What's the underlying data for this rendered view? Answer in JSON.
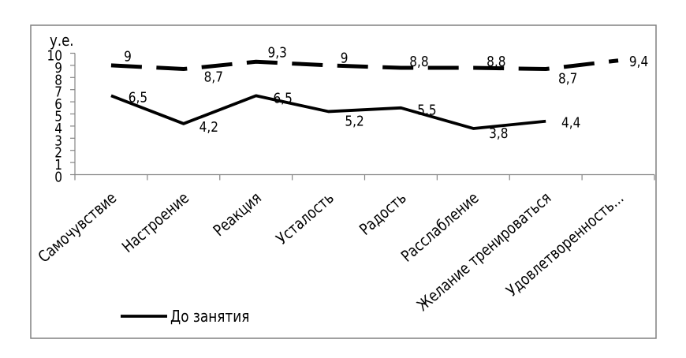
{
  "chart_data": {
    "type": "line",
    "title": "",
    "xlabel": "",
    "ylabel": "у.е.",
    "ylim": [
      0,
      10
    ],
    "ytick_step": 1,
    "grid": false,
    "legend_position": "bottom-left",
    "categories": [
      "Самочувствие",
      "Настроение",
      "Реакция",
      "Усталость",
      "Радость",
      "Расслабление",
      "Желание тренироваться",
      "Удовлетворенность..."
    ],
    "series": [
      {
        "name": "До занятия",
        "line_style": "solid",
        "color": "#000000",
        "values": [
          6.5,
          4.2,
          6.5,
          5.2,
          5.5,
          3.8,
          4.4,
          null
        ],
        "labels": [
          "6,5",
          "4,2",
          "6,5",
          "5,2",
          "5,5",
          "3,8",
          "4,4",
          ""
        ],
        "label_pos": [
          "right",
          "right",
          "right",
          "below-right",
          "right",
          "below-right",
          "right",
          ""
        ],
        "label_offset": [
          [
            34,
            1
          ],
          [
            32,
            3
          ],
          [
            34,
            2
          ],
          [
            33,
            11
          ],
          [
            33,
            1.5
          ],
          [
            32,
            5
          ],
          [
            32,
            1
          ],
          [
            0,
            0
          ]
        ]
      },
      {
        "name": "",
        "line_style": "dashed",
        "color": "#000000",
        "values": [
          9,
          8.7,
          9.3,
          9,
          8.8,
          8.8,
          8.7,
          9.4
        ],
        "labels": [
          "9",
          "8,7",
          "9,3",
          "9",
          "8,8",
          "8,8",
          "8,7",
          "9,4"
        ],
        "label_pos": [
          "above",
          "below",
          "above",
          "above",
          "above",
          "above",
          "below",
          "right"
        ],
        "label_offset": [
          [
            21,
            -12.5
          ],
          [
            38,
            9
          ],
          [
            27,
            -13
          ],
          [
            20,
            -10.5
          ],
          [
            23,
            -9
          ],
          [
            29,
            -9
          ],
          [
            28,
            11
          ],
          [
            26,
            0.5
          ]
        ]
      }
    ],
    "legend": [
      {
        "label": "До занятия",
        "line_style": "solid"
      }
    ],
    "colors": {
      "line": "#000000",
      "axis": "#868686",
      "border": "#808080",
      "text": "#000000",
      "background": "#ffffff"
    }
  }
}
